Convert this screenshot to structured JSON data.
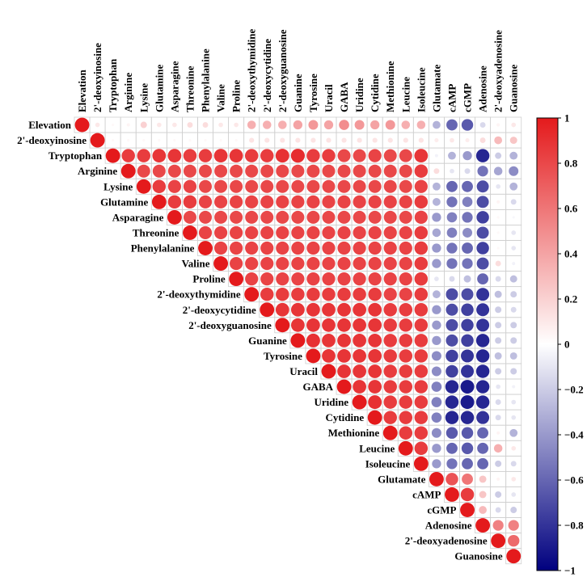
{
  "chart_data": {
    "type": "heatmap",
    "subtype": "upper-triangular correlation circle plot",
    "title": "",
    "variables": [
      "Elevation",
      "2'-deoxyinosine",
      "Tryptophan",
      "Arginine",
      "Lysine",
      "Glutamine",
      "Asparagine",
      "Threonine",
      "Phenylalanine",
      "Valine",
      "Proline",
      "2'-deoxythymidine",
      "2'-deoxycytidine",
      "2'-deoxyguanosine",
      "Guanine",
      "Tyrosine",
      "Uracil",
      "GABA",
      "Uridine",
      "Cytidine",
      "Methionine",
      "Leucine",
      "Isoleucine",
      "Glutamate",
      "cAMP",
      "cGMP",
      "Adenosine",
      "2'-deoxyadenosine",
      "Guanosine"
    ],
    "colorbar": {
      "min": -1,
      "max": 1,
      "ticks": [
        1,
        0.8,
        0.6,
        0.4,
        0.2,
        0,
        -0.2,
        -0.4,
        -0.6,
        -0.8,
        -1
      ],
      "tick_labels": [
        "1",
        "0.8",
        "0.6",
        "0.4",
        "0.2",
        "0",
        "−0.2",
        "−0.4",
        "−0.6",
        "−0.8",
        "−1"
      ],
      "colors": {
        "negative": "#00007f",
        "zero": "#ffffff",
        "positive": "#e41a1c"
      }
    },
    "rows": [
      [
        1,
        0.1,
        0.03,
        0.05,
        0.2,
        0.1,
        0.1,
        0.15,
        0.15,
        0.1,
        0.1,
        0.35,
        0.35,
        0.35,
        0.4,
        0.45,
        0.4,
        0.5,
        0.45,
        0.4,
        0.45,
        0.35,
        0.35,
        -0.3,
        -0.6,
        -0.65,
        -0.15,
        0.05,
        0.1
      ],
      [
        0.1,
        1,
        0.03,
        0.03,
        0.03,
        0.03,
        0.03,
        0.03,
        0.03,
        0.03,
        0.03,
        0.12,
        0.12,
        0.12,
        0.12,
        0.12,
        0.12,
        0.12,
        0.12,
        0.12,
        0.12,
        0.12,
        0.12,
        0.08,
        0.1,
        0.08,
        0.15,
        0.3,
        0.25
      ],
      [
        0.03,
        0.03,
        1,
        0.85,
        0.85,
        0.88,
        0.88,
        0.85,
        0.85,
        0.88,
        0.88,
        0.85,
        0.85,
        0.9,
        0.92,
        0.85,
        0.85,
        0.8,
        0.8,
        0.82,
        0.8,
        0.8,
        0.88,
        -0.05,
        -0.3,
        -0.4,
        -0.85,
        -0.2,
        -0.3
      ],
      [
        0.05,
        0.03,
        0.85,
        1,
        0.8,
        0.8,
        0.8,
        0.8,
        0.8,
        0.8,
        0.8,
        0.8,
        0.8,
        0.8,
        0.8,
        0.8,
        0.8,
        0.8,
        0.8,
        0.8,
        0.8,
        0.8,
        0.85,
        0.15,
        -0.1,
        -0.15,
        -0.55,
        -0.35,
        -0.45
      ],
      [
        0.2,
        0.03,
        0.85,
        0.8,
        1,
        0.85,
        0.82,
        0.82,
        0.8,
        0.8,
        0.8,
        0.8,
        0.8,
        0.8,
        0.8,
        0.8,
        0.8,
        0.8,
        0.8,
        0.8,
        0.8,
        0.8,
        0.82,
        -0.3,
        -0.6,
        -0.6,
        -0.7,
        -0.1,
        -0.3
      ],
      [
        0.1,
        0.03,
        0.88,
        0.8,
        0.85,
        1,
        0.85,
        0.85,
        0.82,
        0.82,
        0.82,
        0.82,
        0.82,
        0.82,
        0.82,
        0.82,
        0.82,
        0.82,
        0.82,
        0.82,
        0.82,
        0.82,
        0.85,
        -0.3,
        -0.55,
        -0.5,
        -0.7,
        0.05,
        -0.15
      ],
      [
        0.1,
        0.03,
        0.88,
        0.8,
        0.82,
        0.85,
        1,
        0.8,
        0.8,
        0.8,
        0.8,
        0.8,
        0.8,
        0.8,
        0.8,
        0.8,
        0.8,
        0.8,
        0.8,
        0.8,
        0.8,
        0.8,
        0.82,
        -0.4,
        -0.5,
        -0.55,
        -0.75,
        0.03,
        -0.03
      ],
      [
        0.15,
        0.03,
        0.85,
        0.8,
        0.82,
        0.85,
        0.8,
        1,
        0.82,
        0.82,
        0.82,
        0.82,
        0.82,
        0.82,
        0.82,
        0.82,
        0.82,
        0.82,
        0.82,
        0.82,
        0.82,
        0.82,
        0.85,
        -0.35,
        -0.5,
        -0.45,
        -0.7,
        0.03,
        -0.1
      ],
      [
        0.15,
        0.03,
        0.85,
        0.8,
        0.8,
        0.82,
        0.8,
        0.82,
        1,
        0.82,
        0.82,
        0.82,
        0.82,
        0.82,
        0.82,
        0.82,
        0.82,
        0.82,
        0.82,
        0.82,
        0.82,
        0.82,
        0.85,
        -0.4,
        -0.55,
        -0.6,
        -0.75,
        0.03,
        -0.1
      ],
      [
        0.1,
        0.03,
        0.88,
        0.8,
        0.8,
        0.82,
        0.8,
        0.82,
        0.82,
        1,
        0.82,
        0.82,
        0.82,
        0.82,
        0.82,
        0.82,
        0.82,
        0.82,
        0.82,
        0.82,
        0.82,
        0.82,
        0.85,
        -0.4,
        -0.55,
        -0.55,
        -0.7,
        0.15,
        -0.05
      ],
      [
        0.1,
        0.03,
        0.88,
        0.8,
        0.8,
        0.82,
        0.8,
        0.82,
        0.82,
        0.82,
        1,
        0.82,
        0.82,
        0.82,
        0.82,
        0.82,
        0.82,
        0.82,
        0.82,
        0.82,
        0.82,
        0.82,
        0.85,
        -0.1,
        -0.15,
        -0.25,
        -0.6,
        -0.15,
        -0.25
      ],
      [
        0.35,
        0.12,
        0.85,
        0.8,
        0.8,
        0.82,
        0.8,
        0.82,
        0.82,
        0.82,
        0.82,
        1,
        0.85,
        0.85,
        0.85,
        0.85,
        0.85,
        0.85,
        0.85,
        0.85,
        0.82,
        0.82,
        0.85,
        -0.3,
        -0.7,
        -0.7,
        -0.8,
        -0.25,
        -0.2
      ],
      [
        0.35,
        0.12,
        0.85,
        0.8,
        0.8,
        0.82,
        0.8,
        0.82,
        0.82,
        0.82,
        0.82,
        0.85,
        1,
        0.88,
        0.88,
        0.88,
        0.88,
        0.88,
        0.88,
        0.88,
        0.85,
        0.85,
        0.85,
        -0.4,
        -0.7,
        -0.75,
        -0.8,
        -0.2,
        -0.15
      ],
      [
        0.35,
        0.12,
        0.9,
        0.8,
        0.8,
        0.82,
        0.8,
        0.82,
        0.82,
        0.82,
        0.82,
        0.85,
        0.88,
        1,
        0.88,
        0.88,
        0.88,
        0.88,
        0.88,
        0.88,
        0.85,
        0.85,
        0.85,
        -0.4,
        -0.7,
        -0.75,
        -0.8,
        -0.2,
        -0.2
      ],
      [
        0.4,
        0.12,
        0.92,
        0.8,
        0.8,
        0.82,
        0.8,
        0.82,
        0.82,
        0.82,
        0.82,
        0.85,
        0.88,
        0.88,
        1,
        0.9,
        0.88,
        0.88,
        0.88,
        0.88,
        0.85,
        0.85,
        0.85,
        -0.4,
        -0.7,
        -0.75,
        -0.85,
        -0.2,
        -0.2
      ],
      [
        0.45,
        0.12,
        0.85,
        0.8,
        0.8,
        0.82,
        0.8,
        0.82,
        0.82,
        0.82,
        0.82,
        0.85,
        0.88,
        0.88,
        0.9,
        1,
        0.88,
        0.88,
        0.88,
        0.88,
        0.85,
        0.85,
        0.85,
        -0.45,
        -0.75,
        -0.8,
        -0.85,
        -0.25,
        -0.25
      ],
      [
        0.4,
        0.12,
        0.85,
        0.8,
        0.8,
        0.82,
        0.8,
        0.82,
        0.82,
        0.82,
        0.82,
        0.85,
        0.88,
        0.88,
        0.88,
        0.88,
        1,
        0.88,
        0.88,
        0.88,
        0.85,
        0.85,
        0.85,
        -0.45,
        -0.75,
        -0.8,
        -0.85,
        -0.2,
        -0.2
      ],
      [
        0.5,
        0.12,
        0.8,
        0.8,
        0.8,
        0.82,
        0.8,
        0.82,
        0.82,
        0.82,
        0.82,
        0.85,
        0.88,
        0.88,
        0.88,
        0.88,
        0.88,
        1,
        0.88,
        0.88,
        0.85,
        0.85,
        0.85,
        -0.5,
        -0.85,
        -0.9,
        -0.85,
        -0.1,
        -0.05
      ],
      [
        0.45,
        0.12,
        0.8,
        0.8,
        0.8,
        0.82,
        0.8,
        0.82,
        0.82,
        0.82,
        0.82,
        0.85,
        0.88,
        0.88,
        0.88,
        0.88,
        0.88,
        0.88,
        1,
        0.9,
        0.85,
        0.85,
        0.85,
        -0.5,
        -0.85,
        -0.9,
        -0.85,
        -0.15,
        -0.1
      ],
      [
        0.4,
        0.12,
        0.82,
        0.8,
        0.8,
        0.82,
        0.8,
        0.82,
        0.82,
        0.82,
        0.82,
        0.85,
        0.88,
        0.88,
        0.88,
        0.88,
        0.88,
        0.88,
        0.9,
        1,
        0.85,
        0.85,
        0.85,
        -0.5,
        -0.85,
        -0.85,
        -0.8,
        -0.15,
        -0.1
      ],
      [
        0.45,
        0.12,
        0.8,
        0.8,
        0.8,
        0.82,
        0.8,
        0.82,
        0.82,
        0.82,
        0.82,
        0.82,
        0.85,
        0.85,
        0.85,
        0.85,
        0.85,
        0.85,
        0.85,
        0.85,
        1,
        0.85,
        0.85,
        -0.45,
        -0.65,
        -0.65,
        -0.6,
        0.05,
        -0.3
      ],
      [
        0.35,
        0.12,
        0.8,
        0.8,
        0.8,
        0.82,
        0.8,
        0.82,
        0.82,
        0.82,
        0.82,
        0.82,
        0.85,
        0.85,
        0.85,
        0.85,
        0.85,
        0.85,
        0.85,
        0.85,
        0.85,
        1,
        0.85,
        -0.4,
        -0.6,
        -0.65,
        -0.6,
        0.35,
        0.1
      ],
      [
        0.35,
        0.12,
        0.88,
        0.85,
        0.82,
        0.85,
        0.82,
        0.85,
        0.85,
        0.85,
        0.85,
        0.85,
        0.85,
        0.85,
        0.85,
        0.85,
        0.85,
        0.85,
        0.85,
        0.85,
        0.85,
        0.85,
        1,
        -0.4,
        -0.55,
        -0.6,
        -0.6,
        -0.2,
        -0.15
      ],
      [
        -0.3,
        0.08,
        -0.05,
        0.15,
        -0.3,
        -0.3,
        -0.4,
        -0.35,
        -0.4,
        -0.4,
        -0.1,
        -0.3,
        -0.4,
        -0.4,
        -0.4,
        -0.45,
        -0.45,
        -0.5,
        -0.5,
        -0.5,
        -0.45,
        -0.4,
        -0.4,
        1,
        0.75,
        0.6,
        0.25,
        0.05,
        0.1
      ],
      [
        -0.6,
        0.1,
        -0.3,
        -0.1,
        -0.6,
        -0.55,
        -0.5,
        -0.5,
        -0.55,
        -0.55,
        -0.15,
        -0.7,
        -0.7,
        -0.7,
        -0.7,
        -0.75,
        -0.75,
        -0.85,
        -0.85,
        -0.85,
        -0.65,
        -0.6,
        -0.55,
        0.75,
        1,
        0.85,
        0.25,
        -0.2,
        -0.1
      ],
      [
        -0.65,
        0.08,
        -0.4,
        -0.15,
        -0.6,
        -0.5,
        -0.55,
        -0.45,
        -0.6,
        -0.55,
        -0.25,
        -0.7,
        -0.75,
        -0.75,
        -0.75,
        -0.8,
        -0.8,
        -0.9,
        -0.9,
        -0.85,
        -0.65,
        -0.65,
        -0.6,
        0.6,
        0.85,
        1,
        0.3,
        -0.15,
        -0.2
      ],
      [
        -0.15,
        0.15,
        -0.85,
        -0.55,
        -0.7,
        -0.7,
        -0.75,
        -0.7,
        -0.75,
        -0.7,
        -0.6,
        -0.8,
        -0.8,
        -0.8,
        -0.85,
        -0.85,
        -0.85,
        -0.85,
        -0.85,
        -0.8,
        -0.6,
        -0.6,
        -0.6,
        0.25,
        0.25,
        0.3,
        1,
        0.55,
        0.55
      ],
      [
        0.05,
        0.3,
        -0.2,
        -0.35,
        -0.1,
        0.05,
        0.03,
        0.03,
        0.03,
        0.15,
        -0.15,
        -0.25,
        -0.2,
        -0.2,
        -0.2,
        -0.25,
        -0.2,
        -0.1,
        -0.15,
        -0.15,
        0.05,
        0.35,
        -0.2,
        0.05,
        -0.2,
        -0.15,
        0.55,
        1,
        0.65
      ],
      [
        0.1,
        0.25,
        -0.3,
        -0.45,
        -0.3,
        -0.15,
        -0.03,
        -0.1,
        -0.1,
        -0.05,
        -0.25,
        -0.2,
        -0.15,
        -0.2,
        -0.2,
        -0.25,
        -0.2,
        -0.05,
        -0.1,
        -0.1,
        -0.3,
        0.1,
        -0.15,
        0.1,
        -0.1,
        -0.2,
        0.55,
        0.65,
        1
      ]
    ]
  }
}
